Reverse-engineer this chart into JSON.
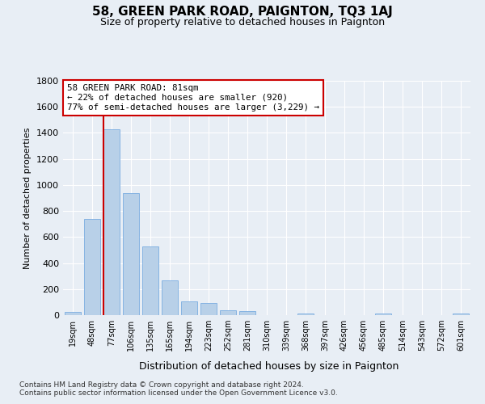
{
  "title": "58, GREEN PARK ROAD, PAIGNTON, TQ3 1AJ",
  "subtitle": "Size of property relative to detached houses in Paignton",
  "xlabel": "Distribution of detached houses by size in Paignton",
  "ylabel": "Number of detached properties",
  "categories": [
    "19sqm",
    "48sqm",
    "77sqm",
    "106sqm",
    "135sqm",
    "165sqm",
    "194sqm",
    "223sqm",
    "252sqm",
    "281sqm",
    "310sqm",
    "339sqm",
    "368sqm",
    "397sqm",
    "426sqm",
    "456sqm",
    "485sqm",
    "514sqm",
    "543sqm",
    "572sqm",
    "601sqm"
  ],
  "values": [
    22,
    740,
    1425,
    938,
    530,
    265,
    105,
    93,
    38,
    28,
    0,
    0,
    15,
    0,
    0,
    0,
    12,
    0,
    0,
    0,
    14
  ],
  "bar_color": "#b8d0e8",
  "bar_edgecolor": "#7aace0",
  "annotation_title": "58 GREEN PARK ROAD: 81sqm",
  "annotation_line1": "← 22% of detached houses are smaller (920)",
  "annotation_line2": "77% of semi-detached houses are larger (3,229) →",
  "annotation_box_facecolor": "#ffffff",
  "annotation_box_edgecolor": "#cc0000",
  "vline_color": "#cc0000",
  "vline_x_index": 2,
  "ylim": [
    0,
    1800
  ],
  "yticks": [
    0,
    200,
    400,
    600,
    800,
    1000,
    1200,
    1400,
    1600,
    1800
  ],
  "bg_color": "#e8eef5",
  "plot_bg_color": "#e8eef5",
  "grid_color": "#ffffff",
  "title_fontsize": 11,
  "subtitle_fontsize": 9,
  "footer1": "Contains HM Land Registry data © Crown copyright and database right 2024.",
  "footer2": "Contains public sector information licensed under the Open Government Licence v3.0."
}
